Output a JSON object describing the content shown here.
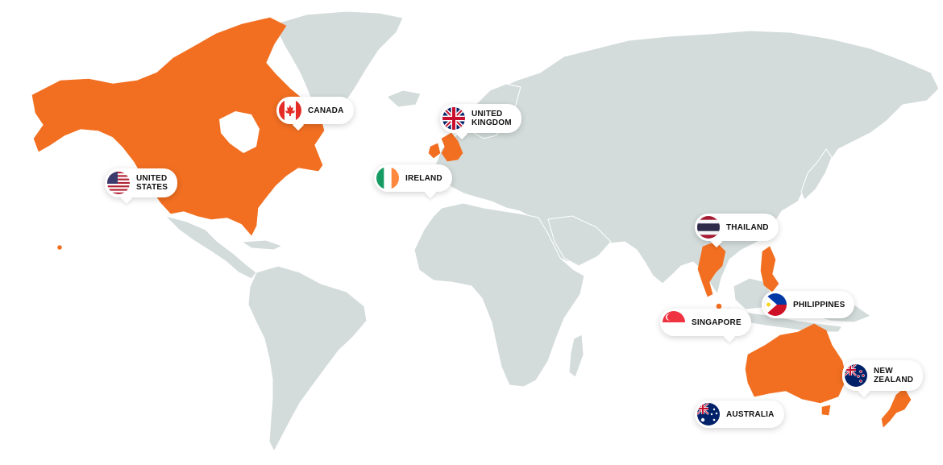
{
  "map": {
    "colors": {
      "highlight": "#f26f21",
      "land": "#d3dcdb",
      "background": "#ffffff"
    },
    "highlighted_regions": [
      "canada",
      "united-states",
      "united-kingdom",
      "ireland",
      "thailand",
      "philippines",
      "singapore",
      "australia",
      "new-zealand"
    ]
  },
  "countries": {
    "canada": {
      "line1": "CANADA",
      "line2": "",
      "flag": "canada-flag-icon"
    },
    "united_kingdom": {
      "line1": "UNITED",
      "line2": "KINGDOM",
      "flag": "united-kingdom-flag-icon"
    },
    "united_states": {
      "line1": "UNITED",
      "line2": "STATES",
      "flag": "united-states-flag-icon"
    },
    "ireland": {
      "line1": "IRELAND",
      "line2": "",
      "flag": "ireland-flag-icon"
    },
    "thailand": {
      "line1": "THAILAND",
      "line2": "",
      "flag": "thailand-flag-icon"
    },
    "philippines": {
      "line1": "PHILIPPINES",
      "line2": "",
      "flag": "philippines-flag-icon"
    },
    "singapore": {
      "line1": "SINGAPORE",
      "line2": "",
      "flag": "singapore-flag-icon"
    },
    "new_zealand": {
      "line1": "NEW",
      "line2": "ZEALAND",
      "flag": "new-zealand-flag-icon"
    },
    "australia": {
      "line1": "AUSTRALIA",
      "line2": "",
      "flag": "australia-flag-icon"
    }
  }
}
